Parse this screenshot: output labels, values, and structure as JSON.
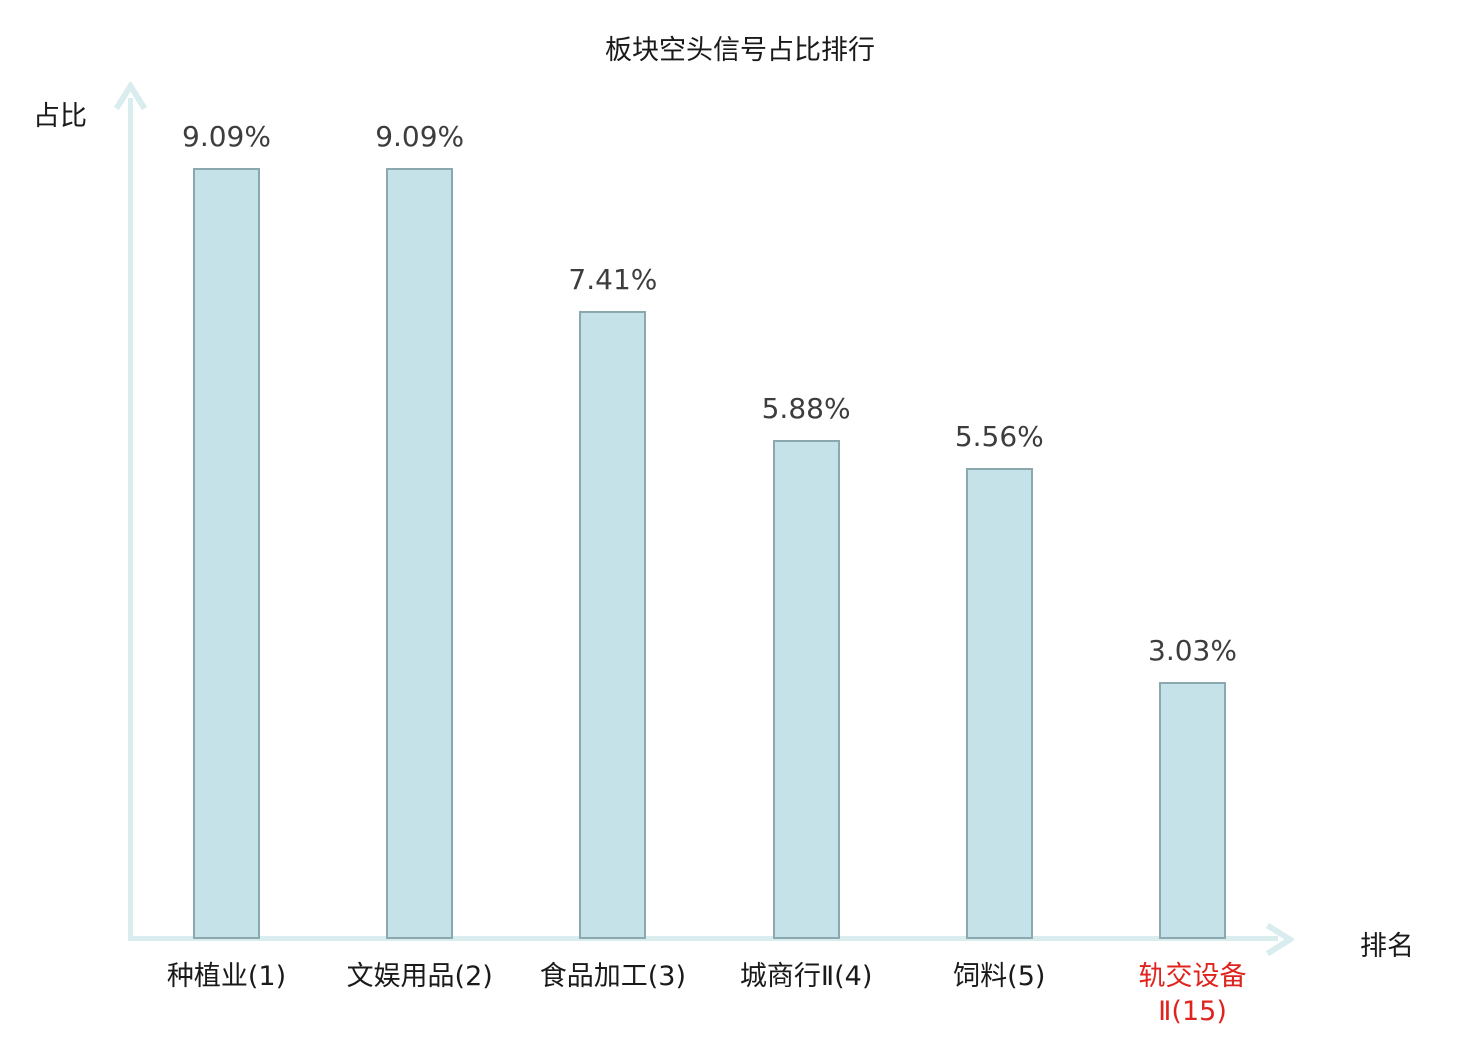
{
  "chart_data": {
    "type": "bar",
    "title": "板块空头信号占比排行",
    "xlabel": "排名",
    "ylabel": "占比",
    "categories": [
      "种植业(1)",
      "文娱用品(2)",
      "食品加工(3)",
      "城商行Ⅱ(4)",
      "饲料(5)",
      "轨交设备\nⅡ(15)"
    ],
    "values": [
      9.09,
      9.09,
      7.41,
      5.88,
      5.56,
      3.03
    ],
    "value_labels": [
      "9.09%",
      "9.09%",
      "7.41%",
      "5.88%",
      "5.56%",
      "3.03%"
    ],
    "ylim": [
      0,
      10
    ],
    "grid": false,
    "legend": null,
    "highlighted_category_index": 5,
    "colors": {
      "bar_fill": "#c4e2e7",
      "bar_border": "#8aa8ae",
      "axis": "#d9edef",
      "label_text": "#3d3d3d",
      "tick_text": "#1a1a1a",
      "highlight_text": "#df241d",
      "background": "#ffffff"
    }
  }
}
